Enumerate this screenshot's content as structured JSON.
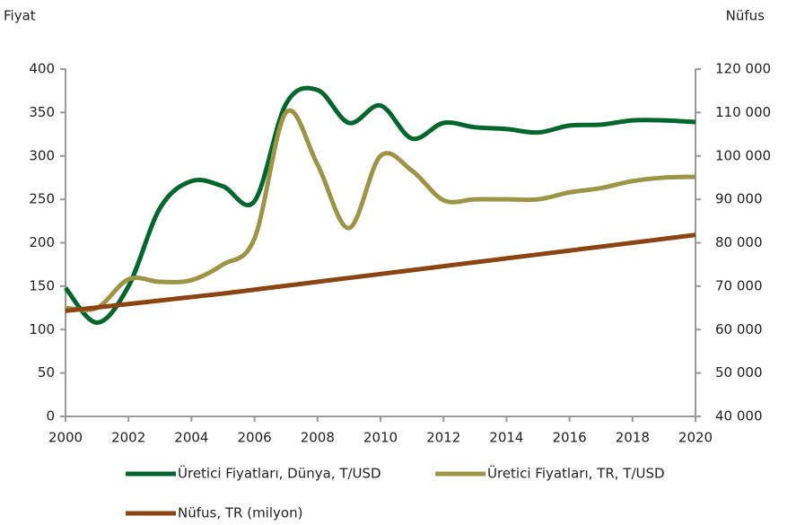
{
  "chart_data": {
    "type": "line",
    "y_label": "Fiyat",
    "y2_label": "Nüfus",
    "x": [
      2000,
      2001,
      2002,
      2003,
      2004,
      2005,
      2006,
      2007,
      2008,
      2009,
      2010,
      2011,
      2012,
      2013,
      2014,
      2015,
      2016,
      2017,
      2018,
      2019,
      2020
    ],
    "xlim": [
      2000,
      2020
    ],
    "xticks": [
      2000,
      2002,
      2004,
      2006,
      2008,
      2010,
      2012,
      2014,
      2016,
      2018,
      2020
    ],
    "ylim": [
      0,
      400
    ],
    "yticks": [
      0,
      50,
      100,
      150,
      200,
      250,
      300,
      350,
      400
    ],
    "y2lim": [
      40000,
      120000
    ],
    "y2ticks": [
      {
        "value": 40000,
        "label": "40 000"
      },
      {
        "value": 50000,
        "label": "50 000"
      },
      {
        "value": 60000,
        "label": "60 000"
      },
      {
        "value": 70000,
        "label": "70 000"
      },
      {
        "value": 80000,
        "label": "80 000"
      },
      {
        "value": 90000,
        "label": "90 000"
      },
      {
        "value": 100000,
        "label": "100 000"
      },
      {
        "value": 110000,
        "label": "110 000"
      },
      {
        "value": 120000,
        "label": "120 000"
      }
    ],
    "legend": "bottom",
    "series": [
      {
        "name": "Üretici Fiyatları, Dünya, T/USD",
        "color": "#00662e",
        "values": [
          148,
          108,
          150,
          240,
          271,
          265,
          248,
          360,
          376,
          338,
          358,
          320,
          338,
          333,
          331,
          327,
          335,
          336,
          341,
          341,
          339
        ]
      },
      {
        "name": "Üretici Fiyatları, TR, T/USD",
        "color": "#9c9447",
        "values": [
          125,
          125,
          158,
          155,
          157,
          175,
          205,
          350,
          290,
          217,
          300,
          283,
          249,
          250,
          250,
          250,
          258,
          263,
          271,
          275,
          276
        ]
      },
      {
        "name": "Nüfus, TR (milyon)",
        "color": "#8b4513",
        "axis": "y2",
        "values": [
          64300,
          65100,
          65900,
          66700,
          67500,
          68300,
          69200,
          70100,
          71000,
          71900,
          72800,
          73700,
          74600,
          75500,
          76400,
          77300,
          78200,
          79100,
          80000,
          80900,
          81800
        ]
      }
    ]
  }
}
